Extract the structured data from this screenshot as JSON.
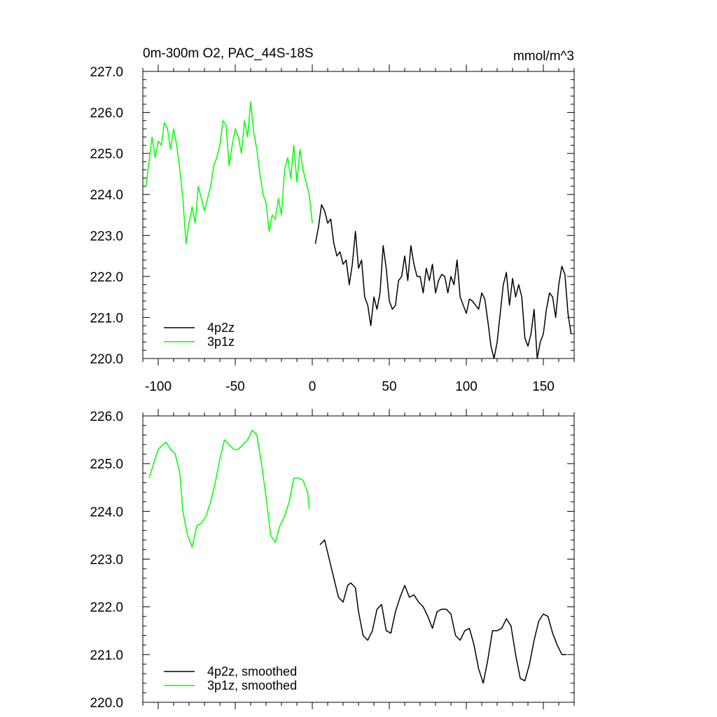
{
  "chart_data": [
    {
      "type": "line",
      "title": "0m-300m O2, PAC_44S-18S",
      "units": "mmol/m^3",
      "xlim": [
        -110,
        170
      ],
      "ylim": [
        220,
        227
      ],
      "xticks": [
        -100,
        -50,
        0,
        50,
        100,
        150
      ],
      "xtick_labels": [
        "-100",
        "-50",
        "0",
        "50",
        "100",
        "150"
      ],
      "yticks": [
        220,
        221,
        222,
        223,
        224,
        225,
        226,
        227
      ],
      "ytick_labels": [
        "220.0",
        "221.0",
        "222.0",
        "223.0",
        "224.0",
        "225.0",
        "226.0",
        "227.0"
      ],
      "legend_position": "bottom-left",
      "series": [
        {
          "name": "4p2z",
          "color": "#000000",
          "x": [
            2,
            4,
            6,
            8,
            10,
            12,
            14,
            16,
            18,
            20,
            22,
            24,
            26,
            28,
            30,
            32,
            34,
            36,
            38,
            40,
            42,
            44,
            46,
            48,
            50,
            52,
            54,
            56,
            58,
            60,
            62,
            64,
            66,
            68,
            70,
            72,
            74,
            76,
            78,
            80,
            82,
            84,
            86,
            88,
            90,
            92,
            94,
            96,
            98,
            100,
            102,
            104,
            106,
            108,
            110,
            112,
            114,
            116,
            118,
            120,
            122,
            124,
            126,
            128,
            130,
            132,
            134,
            136,
            138,
            140,
            142,
            144,
            146,
            148,
            150,
            152,
            154,
            156,
            158,
            160,
            162,
            164,
            166,
            168
          ],
          "y": [
            222.8,
            223.2,
            223.75,
            223.6,
            223.3,
            223.4,
            222.8,
            222.5,
            222.6,
            222.3,
            222.4,
            221.8,
            222.3,
            223.1,
            222.2,
            222.4,
            221.5,
            221.3,
            220.8,
            221.5,
            221.2,
            221.6,
            222.75,
            222.2,
            221.4,
            221.2,
            221.3,
            221.9,
            222.0,
            222.5,
            221.9,
            222.75,
            222.3,
            222.0,
            222.0,
            221.6,
            222.2,
            221.9,
            222.3,
            221.6,
            221.9,
            222.05,
            222.0,
            221.6,
            222.0,
            221.8,
            222.4,
            221.5,
            221.3,
            221.1,
            221.45,
            221.4,
            221.3,
            221.2,
            221.6,
            221.45,
            220.9,
            220.3,
            220.0,
            220.4,
            221.1,
            221.8,
            222.1,
            221.3,
            221.95,
            221.5,
            221.8,
            221.5,
            220.5,
            220.3,
            220.6,
            221.2,
            220.0,
            220.4,
            220.6,
            221.2,
            221.6,
            221.5,
            221.0,
            221.8,
            222.25,
            222.05,
            221.1,
            220.6
          ]
        },
        {
          "name": "3p1z",
          "color": "#00ff00",
          "x": [
            -108,
            -106,
            -104,
            -102,
            -100,
            -98,
            -96,
            -94,
            -92,
            -90,
            -88,
            -86,
            -84,
            -82,
            -80,
            -78,
            -76,
            -74,
            -72,
            -70,
            -68,
            -66,
            -64,
            -62,
            -60,
            -58,
            -56,
            -54,
            -52,
            -50,
            -48,
            -46,
            -44,
            -42,
            -40,
            -38,
            -36,
            -34,
            -32,
            -30,
            -28,
            -26,
            -24,
            -22,
            -20,
            -18,
            -16,
            -14,
            -12,
            -10,
            -8,
            -6,
            -4,
            -2,
            0
          ],
          "y": [
            224.2,
            224.8,
            225.4,
            224.9,
            225.3,
            225.2,
            225.75,
            225.6,
            225.1,
            225.6,
            225.2,
            224.6,
            223.9,
            222.8,
            223.3,
            223.7,
            223.3,
            224.2,
            223.9,
            223.6,
            223.9,
            224.2,
            224.7,
            224.9,
            225.2,
            225.8,
            225.7,
            224.7,
            225.2,
            225.6,
            225.4,
            225.0,
            225.8,
            225.4,
            226.25,
            225.5,
            225.1,
            224.5,
            224.0,
            223.8,
            223.1,
            223.5,
            223.4,
            223.9,
            223.5,
            224.6,
            224.9,
            224.4,
            225.2,
            224.3,
            225.1,
            224.6,
            224.3,
            224.0,
            223.3
          ]
        }
      ]
    },
    {
      "type": "line",
      "title": "",
      "xlim": [
        -110,
        170
      ],
      "ylim": [
        220,
        226
      ],
      "xticks": [
        -100,
        -50,
        0,
        50,
        100,
        150
      ],
      "xtick_labels": [],
      "yticks": [
        220,
        221,
        222,
        223,
        224,
        225,
        226
      ],
      "ytick_labels": [
        "220.0",
        "221.0",
        "222.0",
        "223.0",
        "224.0",
        "225.0",
        "226.0"
      ],
      "legend_position": "bottom-left",
      "series": [
        {
          "name": "4p2z, smoothed",
          "color": "#000000",
          "x": [
            5,
            8,
            11,
            14,
            17,
            20,
            23,
            25,
            28,
            30,
            33,
            36,
            39,
            42,
            45,
            48,
            51,
            54,
            57,
            60,
            63,
            66,
            69,
            72,
            75,
            78,
            81,
            84,
            87,
            90,
            93,
            96,
            99,
            102,
            105,
            108,
            111,
            114,
            117,
            120,
            123,
            126,
            129,
            132,
            135,
            138,
            141,
            144,
            147,
            150,
            153,
            156,
            159,
            162,
            165
          ],
          "y": [
            223.3,
            223.4,
            223.0,
            222.6,
            222.2,
            222.1,
            222.45,
            222.5,
            222.4,
            221.9,
            221.4,
            221.3,
            221.5,
            221.95,
            222.05,
            221.5,
            221.45,
            221.9,
            222.2,
            222.45,
            222.2,
            222.25,
            222.1,
            222.0,
            221.8,
            221.55,
            221.9,
            221.95,
            221.95,
            221.85,
            221.4,
            221.3,
            221.5,
            221.55,
            221.2,
            220.7,
            220.4,
            220.9,
            221.5,
            221.5,
            221.55,
            221.75,
            221.6,
            221.0,
            220.5,
            220.45,
            220.8,
            221.3,
            221.7,
            221.85,
            221.8,
            221.45,
            221.2,
            221.0,
            221.0
          ]
        },
        {
          "name": "3p1z, smoothed",
          "color": "#00ff00",
          "x": [
            -106,
            -103,
            -100,
            -97,
            -95,
            -92,
            -89,
            -86,
            -84,
            -81,
            -78,
            -75,
            -72,
            -69,
            -66,
            -63,
            -60,
            -57,
            -54,
            -51,
            -48,
            -45,
            -42,
            -39,
            -36,
            -33,
            -30,
            -27,
            -24,
            -21,
            -18,
            -15,
            -12,
            -9,
            -6,
            -3,
            -2
          ],
          "y": [
            224.7,
            225.0,
            225.3,
            225.4,
            225.45,
            225.3,
            225.2,
            224.8,
            224.0,
            223.5,
            223.25,
            223.7,
            223.75,
            223.9,
            224.2,
            224.6,
            225.1,
            225.5,
            225.4,
            225.3,
            225.3,
            225.4,
            225.5,
            225.7,
            225.6,
            225.0,
            224.3,
            223.5,
            223.35,
            223.7,
            223.9,
            224.2,
            224.7,
            224.7,
            224.65,
            224.4,
            224.05
          ]
        }
      ]
    }
  ]
}
